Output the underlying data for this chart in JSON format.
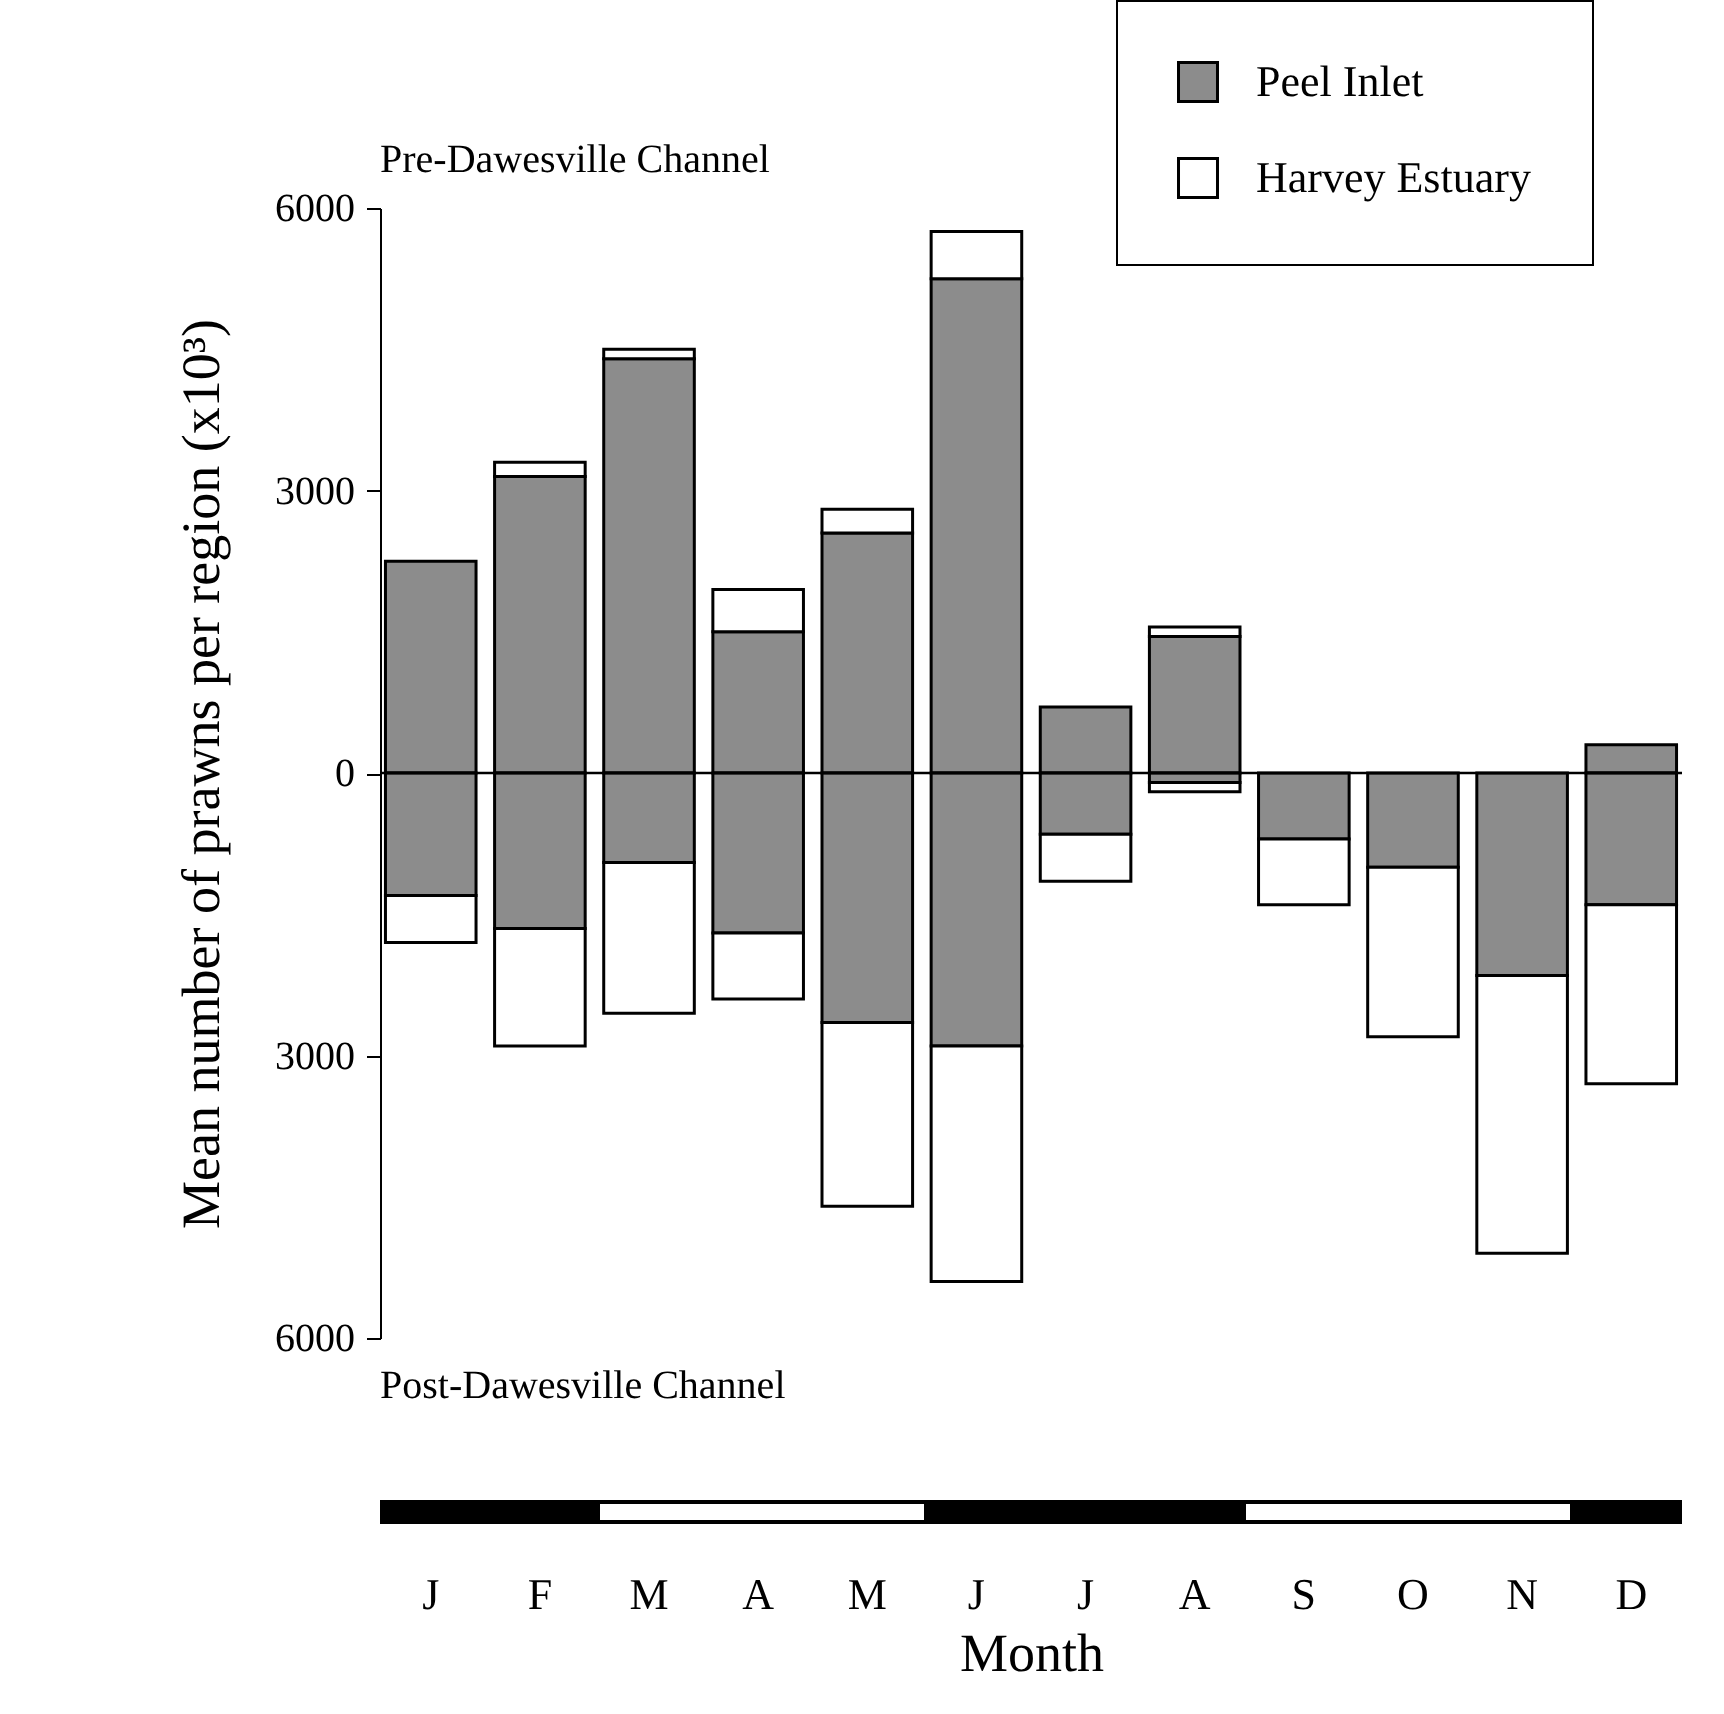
{
  "chart_data": {
    "type": "bar",
    "stacked": true,
    "xlabel": "Month",
    "ylabel": "Mean number of prawns per region (x10³)",
    "categories": [
      "J",
      "F",
      "M",
      "A",
      "M",
      "J",
      "J",
      "A",
      "S",
      "O",
      "N",
      "D"
    ],
    "series": [
      {
        "name": "Peel Inlet",
        "color": "#8c8c8c",
        "values": [
          2250,
          3150,
          4400,
          1500,
          2550,
          5250,
          700,
          1450,
          0,
          0,
          0,
          300
        ]
      },
      {
        "name": "Harvey Estuary",
        "color": "#ffffff",
        "values": [
          0,
          150,
          100,
          450,
          250,
          500,
          0,
          100,
          0,
          0,
          0,
          0
        ]
      },
      {
        "color": "#8c8c8c",
        "values": [
          -1300,
          -1650,
          -950,
          -1700,
          -2650,
          -2900,
          -650,
          -100,
          -700,
          -1000,
          -2150,
          -1400
        ]
      },
      {
        "color": "#ffffff",
        "values": [
          -500,
          -1250,
          -1600,
          -700,
          -1950,
          -2500,
          -500,
          -100,
          -700,
          -1800,
          -2950,
          -1900
        ]
      }
    ],
    "ylim": [
      -6000,
      6000
    ],
    "yticks": [
      {
        "value": -6000,
        "label": "6000"
      },
      {
        "value": -3000,
        "label": "3000"
      },
      0,
      3000,
      6000
    ],
    "ref_lines": [
      {
        "axis": "y",
        "value": 0
      }
    ],
    "annotations": [
      "Pre-Dawesville Channel",
      "Post-Dawesville Channel"
    ],
    "legend": "top right",
    "tick_labels": "y"
  }
}
